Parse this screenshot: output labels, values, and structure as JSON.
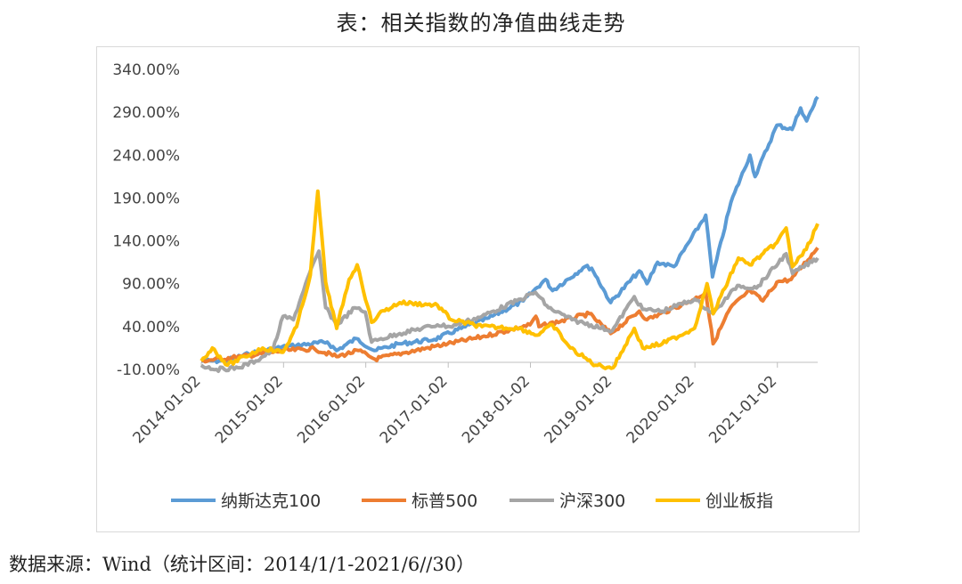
{
  "page": {
    "title": "表：相关指数的净值曲线走势",
    "source_note": "数据来源：Wind（统计区间：2014/1/1-2021/6//30）"
  },
  "chart_data": {
    "type": "line",
    "title": "表：相关指数的净值曲线走势",
    "xlabel": "",
    "ylabel": "",
    "ylim": [
      -10,
      340
    ],
    "y_ticks": [
      -10,
      40,
      90,
      140,
      190,
      240,
      290,
      340
    ],
    "y_tick_labels": [
      "-10.00%",
      "40.00%",
      "90.00%",
      "140.00%",
      "190.00%",
      "240.00%",
      "290.00%",
      "340.00%"
    ],
    "x_range": [
      "2014-01-02",
      "2021-06-30"
    ],
    "x_ticks": [
      "2014-01-02",
      "2015-01-02",
      "2016-01-02",
      "2017-01-02",
      "2018-01-02",
      "2019-01-02",
      "2020-01-02",
      "2021-01-02"
    ],
    "legend_position": "bottom",
    "grid": false,
    "series": [
      {
        "name": "纳斯达克100",
        "color": "#5B9BD5",
        "points": [
          [
            "2014-01-02",
            0
          ],
          [
            "2014-04-15",
            0
          ],
          [
            "2014-08-01",
            8
          ],
          [
            "2014-12-01",
            15
          ],
          [
            "2015-03-01",
            18
          ],
          [
            "2015-07-15",
            22
          ],
          [
            "2015-08-25",
            12
          ],
          [
            "2015-11-20",
            26
          ],
          [
            "2016-02-10",
            12
          ],
          [
            "2016-06-01",
            20
          ],
          [
            "2016-11-01",
            25
          ],
          [
            "2017-03-01",
            38
          ],
          [
            "2017-07-01",
            50
          ],
          [
            "2017-12-01",
            70
          ],
          [
            "2018-03-10",
            95
          ],
          [
            "2018-04-10",
            82
          ],
          [
            "2018-09-01",
            110
          ],
          [
            "2018-10-01",
            108
          ],
          [
            "2018-12-24",
            68
          ],
          [
            "2019-04-30",
            105
          ],
          [
            "2019-06-03",
            90
          ],
          [
            "2019-07-20",
            115
          ],
          [
            "2019-10-01",
            110
          ],
          [
            "2020-02-19",
            170
          ],
          [
            "2020-03-20",
            98
          ],
          [
            "2020-06-10",
            185
          ],
          [
            "2020-09-02",
            240
          ],
          [
            "2020-09-25",
            215
          ],
          [
            "2020-12-31",
            275
          ],
          [
            "2021-03-08",
            270
          ],
          [
            "2021-04-15",
            295
          ],
          [
            "2021-05-12",
            280
          ],
          [
            "2021-06-30",
            308
          ]
        ]
      },
      {
        "name": "标普500",
        "color": "#ED7D31",
        "points": [
          [
            "2014-01-02",
            0
          ],
          [
            "2014-07-01",
            5
          ],
          [
            "2014-12-31",
            12
          ],
          [
            "2015-05-20",
            14
          ],
          [
            "2015-08-25",
            5
          ],
          [
            "2015-12-01",
            12
          ],
          [
            "2016-02-11",
            2
          ],
          [
            "2016-07-01",
            10
          ],
          [
            "2016-12-31",
            20
          ],
          [
            "2017-06-01",
            28
          ],
          [
            "2017-12-31",
            42
          ],
          [
            "2018-01-26",
            52
          ],
          [
            "2018-02-09",
            40
          ],
          [
            "2018-09-20",
            55
          ],
          [
            "2018-12-24",
            32
          ],
          [
            "2019-04-30",
            58
          ],
          [
            "2019-06-03",
            48
          ],
          [
            "2019-12-31",
            72
          ],
          [
            "2020-02-19",
            80
          ],
          [
            "2020-03-23",
            20
          ],
          [
            "2020-06-08",
            62
          ],
          [
            "2020-09-02",
            82
          ],
          [
            "2020-10-30",
            70
          ],
          [
            "2020-12-31",
            92
          ],
          [
            "2021-03-04",
            95
          ],
          [
            "2021-06-30",
            132
          ]
        ]
      },
      {
        "name": "沪深300",
        "color": "#A5A5A5",
        "points": [
          [
            "2014-01-02",
            -5
          ],
          [
            "2014-03-10",
            -10
          ],
          [
            "2014-06-15",
            -8
          ],
          [
            "2014-09-01",
            0
          ],
          [
            "2014-11-15",
            12
          ],
          [
            "2014-12-31",
            52
          ],
          [
            "2015-02-15",
            48
          ],
          [
            "2015-04-10",
            90
          ],
          [
            "2015-06-08",
            128
          ],
          [
            "2015-07-08",
            62
          ],
          [
            "2015-08-26",
            42
          ],
          [
            "2015-11-15",
            62
          ],
          [
            "2015-12-31",
            57
          ],
          [
            "2016-01-28",
            22
          ],
          [
            "2016-03-01",
            25
          ],
          [
            "2016-06-01",
            32
          ],
          [
            "2016-11-15",
            42
          ],
          [
            "2017-01-10",
            40
          ],
          [
            "2017-06-01",
            52
          ],
          [
            "2017-11-20",
            72
          ],
          [
            "2018-01-24",
            80
          ],
          [
            "2018-03-23",
            62
          ],
          [
            "2018-07-05",
            48
          ],
          [
            "2018-12-31",
            35
          ],
          [
            "2019-04-08",
            75
          ],
          [
            "2019-05-15",
            60
          ],
          [
            "2019-08-10",
            58
          ],
          [
            "2019-12-31",
            72
          ],
          [
            "2020-03-23",
            55
          ],
          [
            "2020-07-09",
            88
          ],
          [
            "2020-10-01",
            85
          ],
          [
            "2021-02-10",
            125
          ],
          [
            "2021-03-10",
            102
          ],
          [
            "2021-06-30",
            120
          ]
        ]
      },
      {
        "name": "创业板指",
        "color": "#FFC000",
        "points": [
          [
            "2014-01-02",
            0
          ],
          [
            "2014-02-20",
            15
          ],
          [
            "2014-04-28",
            -5
          ],
          [
            "2014-07-15",
            5
          ],
          [
            "2014-10-01",
            15
          ],
          [
            "2014-12-31",
            10
          ],
          [
            "2015-03-01",
            40
          ],
          [
            "2015-05-01",
            100
          ],
          [
            "2015-06-03",
            198
          ],
          [
            "2015-07-08",
            92
          ],
          [
            "2015-08-26",
            38
          ],
          [
            "2015-10-20",
            95
          ],
          [
            "2015-11-25",
            112
          ],
          [
            "2016-01-28",
            45
          ],
          [
            "2016-03-01",
            55
          ],
          [
            "2016-06-01",
            68
          ],
          [
            "2016-11-15",
            65
          ],
          [
            "2017-01-16",
            48
          ],
          [
            "2017-06-01",
            40
          ],
          [
            "2017-11-15",
            38
          ],
          [
            "2018-01-31",
            30
          ],
          [
            "2018-04-10",
            42
          ],
          [
            "2018-06-28",
            15
          ],
          [
            "2018-10-18",
            -5
          ],
          [
            "2019-01-04",
            -8
          ],
          [
            "2019-04-08",
            38
          ],
          [
            "2019-05-15",
            15
          ],
          [
            "2019-08-10",
            20
          ],
          [
            "2019-12-31",
            38
          ],
          [
            "2020-02-25",
            90
          ],
          [
            "2020-03-23",
            55
          ],
          [
            "2020-07-13",
            120
          ],
          [
            "2020-09-01",
            112
          ],
          [
            "2020-12-31",
            138
          ],
          [
            "2021-02-10",
            155
          ],
          [
            "2021-03-10",
            110
          ],
          [
            "2021-05-10",
            130
          ],
          [
            "2021-06-30",
            160
          ]
        ]
      }
    ]
  }
}
